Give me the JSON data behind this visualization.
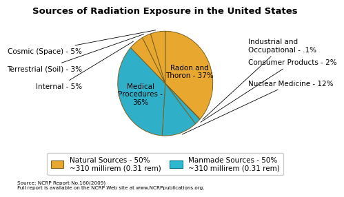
{
  "title": "Sources of Radiation Exposure in the United States",
  "ordered_slices": [
    {
      "label": "Radon and\nThoron - 37%",
      "value": 37,
      "color": "#E8A830",
      "inside": true
    },
    {
      "label": "Industrial and\nOccupational - .1%",
      "value": 0.1,
      "color": "#30B0C8",
      "inside": false
    },
    {
      "label": "Consumer Products - 2%",
      "value": 2,
      "color": "#30B0C8",
      "inside": false
    },
    {
      "label": "Nuclear Medicine - 12%",
      "value": 12,
      "color": "#30B0C8",
      "inside": false
    },
    {
      "label": "Medical\nProcedures -\n36%",
      "value": 36,
      "color": "#30B0C8",
      "inside": true
    },
    {
      "label": "Internal - 5%",
      "value": 5,
      "color": "#E8A830",
      "inside": false
    },
    {
      "label": "Terrestrial (Soil) - 3%",
      "value": 3,
      "color": "#E8A830",
      "inside": false
    },
    {
      "label": "Cosmic (Space) - 5%",
      "value": 5,
      "color": "#E8A830",
      "inside": false
    }
  ],
  "natural_color": "#E8A830",
  "manmade_color": "#2EB8D0",
  "legend_natural": "Natural Sources - 50%\n~310 millirem (0.31 rem)",
  "legend_manmade": "Manmade Sources - 50%\n~310 millirem (0.31 rem)",
  "source_text": "Source: NCRP Report No.160(2009)\nFull report is available on the NCRP Web site at www.NCRPpublications.org.",
  "bg_color": "#FFFFFF",
  "title_fontsize": 9.5,
  "label_fontsize": 7.5,
  "edge_color": "#7A6020"
}
